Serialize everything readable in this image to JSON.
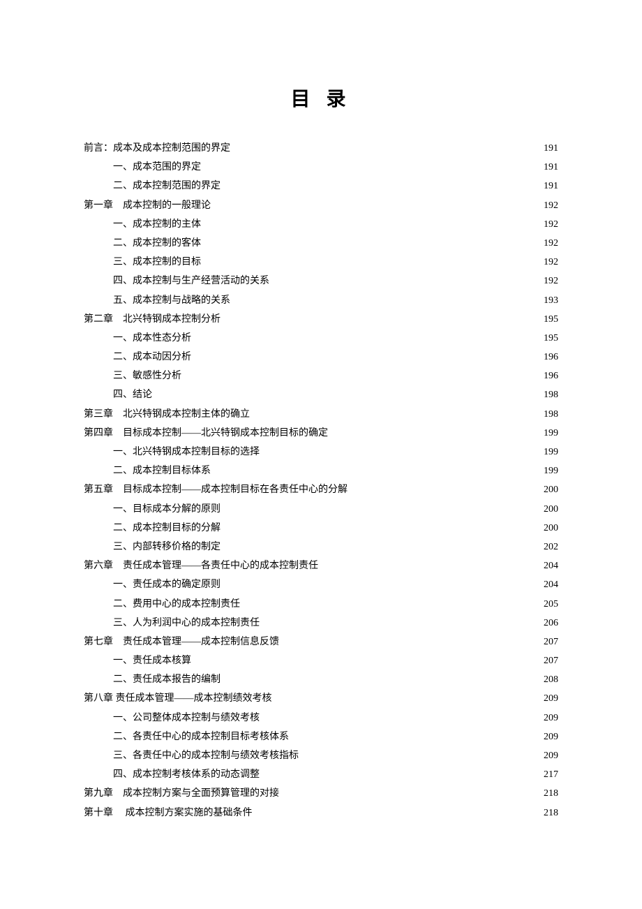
{
  "title": "目 录",
  "toc": [
    {
      "indent": 0,
      "label": "前言：成本及成本控制范围的界定",
      "page": "191"
    },
    {
      "indent": 1,
      "label": "一、成本范围的界定",
      "page": "191"
    },
    {
      "indent": 1,
      "label": "二、成本控制范围的界定",
      "page": "191"
    },
    {
      "indent": 0,
      "label": "第一章　成本控制的一般理论",
      "page": "192"
    },
    {
      "indent": 1,
      "label": "一、成本控制的主体",
      "page": "192"
    },
    {
      "indent": 1,
      "label": "二、成本控制的客体",
      "page": "192"
    },
    {
      "indent": 1,
      "label": "三、成本控制的目标",
      "page": "192"
    },
    {
      "indent": 1,
      "label": "四、成本控制与生产经营活动的关系",
      "page": "192"
    },
    {
      "indent": 1,
      "label": "五、成本控制与战略的关系",
      "page": "193"
    },
    {
      "indent": 0,
      "label": "第二章　北兴特钢成本控制分析",
      "page": "195"
    },
    {
      "indent": 1,
      "label": "一、成本性态分析",
      "page": "195"
    },
    {
      "indent": 1,
      "label": "二、成本动因分析",
      "page": "196"
    },
    {
      "indent": 1,
      "label": "三、敏感性分析",
      "page": "196"
    },
    {
      "indent": 1,
      "label": "四、结论",
      "page": "198"
    },
    {
      "indent": 0,
      "label": "第三章　北兴特钢成本控制主体的确立",
      "page": "198"
    },
    {
      "indent": 0,
      "label": "第四章　目标成本控制——北兴特钢成本控制目标的确定",
      "page": "199"
    },
    {
      "indent": 1,
      "label": "一、北兴特钢成本控制目标的选择",
      "page": "199"
    },
    {
      "indent": 1,
      "label": "二、成本控制目标体系",
      "page": "199"
    },
    {
      "indent": 0,
      "label": "第五章　目标成本控制——成本控制目标在各责任中心的分解",
      "page": "200"
    },
    {
      "indent": 1,
      "label": "一、目标成本分解的原则",
      "page": "200"
    },
    {
      "indent": 1,
      "label": "二、成本控制目标的分解",
      "page": "200"
    },
    {
      "indent": 1,
      "label": "三、内部转移价格的制定",
      "page": "202"
    },
    {
      "indent": 0,
      "label": "第六章　责任成本管理——各责任中心的成本控制责任",
      "page": "204"
    },
    {
      "indent": 1,
      "label": "一、责任成本的确定原则",
      "page": "204"
    },
    {
      "indent": 1,
      "label": "二、费用中心的成本控制责任",
      "page": "205"
    },
    {
      "indent": 1,
      "label": "三、人为利润中心的成本控制责任",
      "page": "206"
    },
    {
      "indent": 0,
      "label": "第七章　责任成本管理——成本控制信息反馈",
      "page": "207"
    },
    {
      "indent": 1,
      "label": "一、责任成本核算",
      "page": "207"
    },
    {
      "indent": 1,
      "label": "二、责任成本报告的编制",
      "page": "208"
    },
    {
      "indent": 0,
      "label": "第八章  责任成本管理——成本控制绩效考核",
      "page": "209"
    },
    {
      "indent": 1,
      "label": "一、公司整体成本控制与绩效考核",
      "page": "209"
    },
    {
      "indent": 1,
      "label": "二、各责任中心的成本控制目标考核体系",
      "page": "209"
    },
    {
      "indent": 1,
      "label": "三、各责任中心的成本控制与绩效考核指标",
      "page": "209"
    },
    {
      "indent": 1,
      "label": "四、成本控制考核体系的动态调整",
      "page": "217"
    },
    {
      "indent": 0,
      "label": "第九章　成本控制方案与全面预算管理的对接",
      "page": "218"
    },
    {
      "indent": 0,
      "label": "第十章　 成本控制方案实施的基础条件",
      "page": "218"
    }
  ]
}
